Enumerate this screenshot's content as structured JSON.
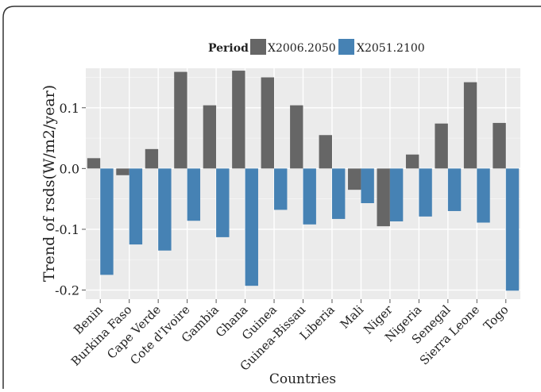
{
  "chart_data": {
    "type": "bar",
    "xlabel": "Countries",
    "ylabel": "Trend of rsds(W/m2/year)",
    "ylim": [
      -0.215,
      0.165
    ],
    "yticks": [
      {
        "value": 0.1,
        "label": "0.1"
      },
      {
        "value": 0.0,
        "label": "0.0"
      },
      {
        "value": -0.1,
        "label": "-0.1"
      },
      {
        "value": -0.2,
        "label": "-0.2"
      }
    ],
    "grid": true,
    "legend": {
      "title": "Period",
      "placement": "top"
    },
    "categories": [
      "Benin",
      "Burkina Faso",
      "Cape Verde",
      "Cote d'Ivoire",
      "Gambia",
      "Ghana",
      "Guinea",
      "Guinea-Bissau",
      "Liberia",
      "Mali",
      "Niger",
      "Nigeria",
      "Senegal",
      "Sierra Leone",
      "Togo"
    ],
    "series": [
      {
        "name": "X2006.2050",
        "color": "#666666",
        "values": [
          0.017,
          -0.011,
          0.032,
          0.159,
          0.104,
          0.161,
          0.15,
          0.104,
          0.055,
          -0.035,
          -0.095,
          0.023,
          0.074,
          0.142,
          0.075
        ]
      },
      {
        "name": "X2051.2100",
        "color": "#4682b4",
        "values": [
          -0.175,
          -0.125,
          -0.135,
          -0.086,
          -0.113,
          -0.193,
          -0.068,
          -0.092,
          -0.083,
          -0.057,
          -0.087,
          -0.079,
          -0.07,
          -0.089,
          -0.201
        ]
      }
    ]
  }
}
